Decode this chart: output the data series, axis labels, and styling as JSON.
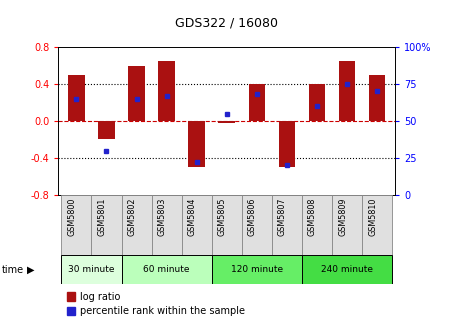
{
  "title": "GDS322 / 16080",
  "categories": [
    "GSM5800",
    "GSM5801",
    "GSM5802",
    "GSM5803",
    "GSM5804",
    "GSM5805",
    "GSM5806",
    "GSM5807",
    "GSM5808",
    "GSM5809",
    "GSM5810"
  ],
  "log_ratios": [
    0.5,
    -0.2,
    0.6,
    0.65,
    -0.5,
    -0.02,
    0.4,
    -0.5,
    0.4,
    0.65,
    0.5
  ],
  "percentile_ranks": [
    65,
    30,
    65,
    67,
    22,
    55,
    68,
    20,
    60,
    75,
    70
  ],
  "bar_color": "#aa1111",
  "dot_color": "#2222cc",
  "ylim_left": [
    -0.8,
    0.8
  ],
  "ylim_right": [
    0,
    100
  ],
  "yticks_left": [
    -0.8,
    -0.4,
    0.0,
    0.4,
    0.8
  ],
  "yticks_right": [
    0,
    25,
    50,
    75,
    100
  ],
  "ytick_labels_right": [
    "0",
    "25",
    "50",
    "75",
    "100%"
  ],
  "time_groups": [
    {
      "label": "30 minute",
      "start": 0,
      "end": 2,
      "color": "#ddffdd"
    },
    {
      "label": "60 minute",
      "start": 2,
      "end": 5,
      "color": "#bbffbb"
    },
    {
      "label": "120 minute",
      "start": 5,
      "end": 8,
      "color": "#66ee66"
    },
    {
      "label": "240 minute",
      "start": 8,
      "end": 11,
      "color": "#44dd44"
    }
  ],
  "time_label": "time",
  "legend_log_ratio": "log ratio",
  "legend_percentile": "percentile rank within the sample"
}
